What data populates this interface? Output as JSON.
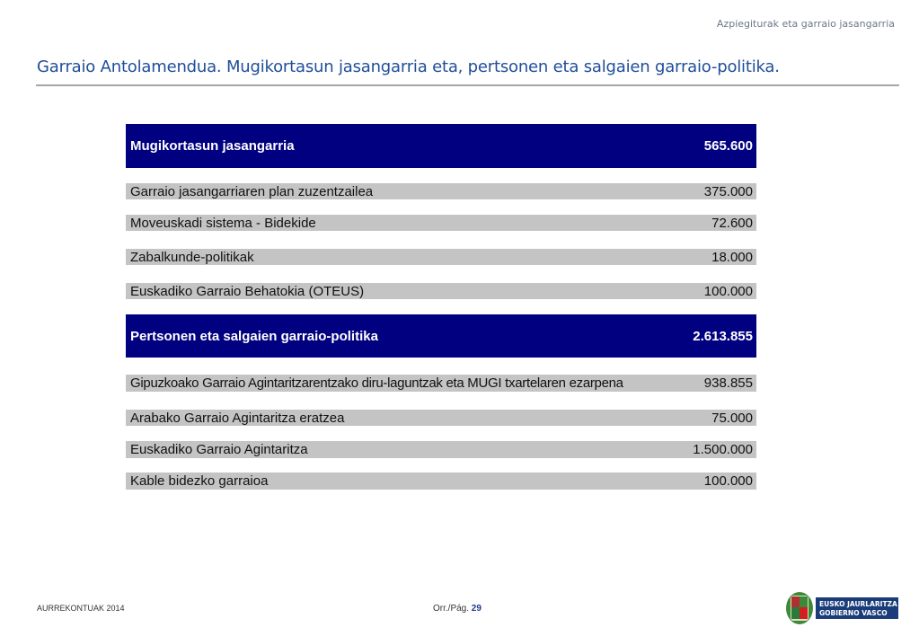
{
  "header": {
    "section": "Azpiegiturak eta garraio jasangarria",
    "title": "Garraio Antolamendua. Mugikortasun jasangarria eta,  pertsonen eta salgaien garraio-politika."
  },
  "table": {
    "groups": [
      {
        "label": "Mugikortasun jasangarria",
        "value": "565.600",
        "items": [
          {
            "label": "Garraio jasangarriaren plan zuzentzailea",
            "value": "375.000"
          },
          {
            "label": "Moveuskadi sistema - Bidekide",
            "value": "72.600"
          },
          {
            "label": "Zabalkunde-politikak",
            "value": "18.000"
          },
          {
            "label": "Euskadiko Garraio Behatokia (OTEUS)",
            "value": "100.000"
          }
        ]
      },
      {
        "label": "Pertsonen eta salgaien garraio-politika",
        "value": "2.613.855",
        "items": [
          {
            "label": "Gipuzkoako Garraio Agintaritzarentzako diru-laguntzak eta MUGI txartelaren ezarpena",
            "value": "938.855"
          },
          {
            "label": "Arabako Garraio Agintaritza eratzea",
            "value": "75.000"
          },
          {
            "label": "Euskadiko Garraio Agintaritza",
            "value": "1.500.000"
          },
          {
            "label": "Kable bidezko garraioa",
            "value": "100.000"
          }
        ]
      }
    ]
  },
  "footer": {
    "left": "AURREKONTUAK 2014",
    "page_label": "Orr./Pág.",
    "page_number": "29",
    "logo_text": [
      "EUSKO JAURLARITZA",
      "GOBIERNO VASCO"
    ]
  },
  "colors": {
    "header_row": "#000080",
    "item_row": "#c4c4c4",
    "title": "#1f4e9a"
  }
}
